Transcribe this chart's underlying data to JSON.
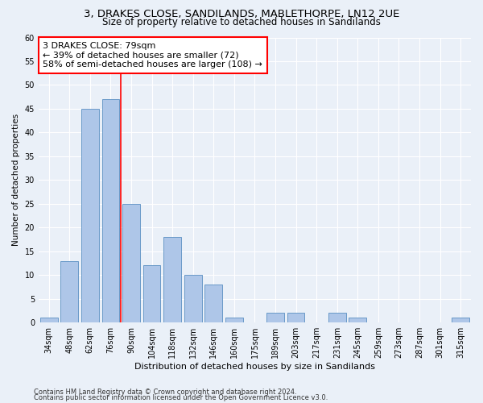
{
  "title1": "3, DRAKES CLOSE, SANDILANDS, MABLETHORPE, LN12 2UE",
  "title2": "Size of property relative to detached houses in Sandilands",
  "xlabel": "Distribution of detached houses by size in Sandilands",
  "ylabel": "Number of detached properties",
  "categories": [
    "34sqm",
    "48sqm",
    "62sqm",
    "76sqm",
    "90sqm",
    "104sqm",
    "118sqm",
    "132sqm",
    "146sqm",
    "160sqm",
    "175sqm",
    "189sqm",
    "203sqm",
    "217sqm",
    "231sqm",
    "245sqm",
    "259sqm",
    "273sqm",
    "287sqm",
    "301sqm",
    "315sqm"
  ],
  "values": [
    1,
    13,
    45,
    47,
    25,
    12,
    18,
    10,
    8,
    1,
    0,
    2,
    2,
    0,
    2,
    1,
    0,
    0,
    0,
    0,
    1
  ],
  "bar_color": "#aec6e8",
  "bar_edge_color": "#5a8fc2",
  "red_line_index": 3,
  "annotation_line1": "3 DRAKES CLOSE: 79sqm",
  "annotation_line2": "← 39% of detached houses are smaller (72)",
  "annotation_line3": "58% of semi-detached houses are larger (108) →",
  "annotation_box_color": "white",
  "annotation_box_edge": "red",
  "ylim": [
    0,
    60
  ],
  "yticks": [
    0,
    5,
    10,
    15,
    20,
    25,
    30,
    35,
    40,
    45,
    50,
    55,
    60
  ],
  "footer1": "Contains HM Land Registry data © Crown copyright and database right 2024.",
  "footer2": "Contains public sector information licensed under the Open Government Licence v3.0.",
  "background_color": "#eaf0f8",
  "grid_color": "#ffffff",
  "title1_fontsize": 9.5,
  "title2_fontsize": 8.5,
  "axis_label_fontsize": 7.5,
  "tick_fontsize": 7,
  "footer_fontsize": 6,
  "annotation_fontsize": 8
}
